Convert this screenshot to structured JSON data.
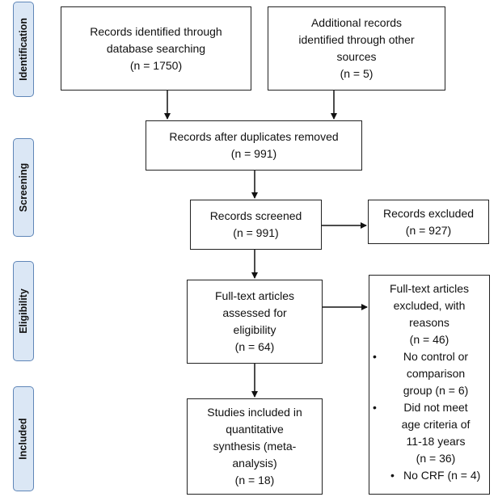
{
  "stages": {
    "identification": "Identification",
    "screening": "Screening",
    "eligibility": "Eligibility",
    "included": "Included"
  },
  "boxes": {
    "database": [
      "Records identified through",
      "database searching",
      "(n = 1750)"
    ],
    "other_sources": [
      "Additional records",
      "identified through other",
      "sources",
      "(n = 5)"
    ],
    "duplicates": [
      "Records after duplicates removed",
      "(n = 991)"
    ],
    "screened": [
      "Records screened",
      "(n = 991)"
    ],
    "excluded": [
      "Records excluded",
      "(n = 927)"
    ],
    "fulltext": [
      "Full-text articles",
      "assessed for",
      "eligibility",
      "(n = 64)"
    ],
    "fulltext_excluded": {
      "heading": [
        "Full-text articles",
        "excluded, with",
        "reasons",
        "(n = 46)"
      ],
      "reasons": [
        [
          "No control or",
          "comparison",
          "group (n = 6)"
        ],
        [
          "Did not meet",
          "age criteria of",
          "11-18 years",
          "(n = 36)"
        ],
        [
          "No CRF (n = 4)"
        ]
      ]
    },
    "included": [
      "Studies included in",
      "quantitative",
      "synthesis (meta-",
      "analysis)",
      "(n = 18)"
    ]
  },
  "colors": {
    "stage_fill": "#dbe7f5",
    "stage_border": "#5f86b8",
    "box_border": "#222222"
  },
  "bullet_glyph": "•"
}
